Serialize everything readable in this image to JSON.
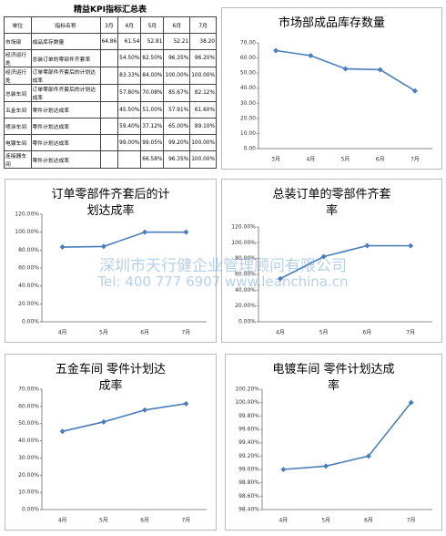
{
  "table": {
    "title": "精益KPI指标汇总表",
    "header": [
      "单位",
      "指标名称",
      "3月",
      "4月",
      "5月",
      "6月",
      "7月"
    ],
    "rows": [
      [
        "市场部",
        "成品库存数量",
        "64.86",
        "61.54",
        "52.81",
        "52.21",
        "38.20"
      ],
      [
        "经济运行处",
        "总装订单的零部件齐套率",
        null,
        "54.50%",
        "82.50%",
        "96.35%",
        "96.20%"
      ],
      [
        "经济运行处",
        "订单零部件齐套后的计划达成率",
        null,
        "83.33%",
        "84.00%",
        "100.00%",
        "100.00%"
      ],
      [
        "总装车间",
        "订单零部件齐套后的计划达成率",
        null,
        "57.80%",
        "70.08%",
        "85.67%",
        "82.12%"
      ],
      [
        "五金车间",
        "零件计划达成率",
        null,
        "45.50%",
        "51.00%",
        "57.91%",
        "61.60%"
      ],
      [
        "喷涂车间",
        "零件计划达成率",
        null,
        "59.40%",
        "37.12%",
        "65.00%",
        "89.10%"
      ],
      [
        "电镀车间",
        "零件计划达成率",
        null,
        "99.00%",
        "99.05%",
        "99.20%",
        "100.00%"
      ],
      [
        "连接器车间",
        "零件计划达成率",
        null,
        null,
        "66.58%",
        "96.35%",
        "100.00%"
      ]
    ]
  },
  "watermark": [
    "深圳市天行健企业管理顾问有限公司",
    "Tel: 400 777 6907 www.leanchina.cn"
  ],
  "chart_data": [
    {
      "type": "line",
      "title": "市场部成品库存数量",
      "color": "#4a7ebb",
      "categories": [
        "3月",
        "4月",
        "5月",
        "6月",
        "7月"
      ],
      "values": [
        64.86,
        61.54,
        52.81,
        52.21,
        38.2
      ],
      "ylim": [
        0,
        70
      ],
      "yticks": [
        {
          "value": 0,
          "label": "0.00"
        },
        {
          "value": 10,
          "label": "10.00"
        },
        {
          "value": 20,
          "label": "20.00"
        },
        {
          "value": 30,
          "label": "30.00"
        },
        {
          "value": 40,
          "label": "40.00"
        },
        {
          "value": 50,
          "label": "50.00"
        },
        {
          "value": 60,
          "label": "60.00"
        },
        {
          "value": 70,
          "label": "70.00"
        }
      ],
      "grid": false
    },
    {
      "type": "line",
      "title": "订单零部件齐套后的计划达成率",
      "color": "#4a7ebb",
      "categories": [
        "4月",
        "5月",
        "6月",
        "7月"
      ],
      "values": [
        83.33,
        84,
        100,
        100
      ],
      "ylim": [
        0,
        120
      ],
      "yticks": [
        {
          "value": 0,
          "label": "0.00%"
        },
        {
          "value": 20,
          "label": "20.00%"
        },
        {
          "value": 40,
          "label": "40.00%"
        },
        {
          "value": 60,
          "label": "60.00%"
        },
        {
          "value": 80,
          "label": "80.00%"
        },
        {
          "value": 100,
          "label": "100.00%"
        },
        {
          "value": 120,
          "label": "120.00%"
        }
      ],
      "grid": false
    },
    {
      "type": "line",
      "title": "总装订单的零部件齐套率",
      "color": "#4a7ebb",
      "categories": [
        "4月",
        "5月",
        "6月",
        "7月"
      ],
      "values": [
        54.5,
        82.5,
        96.35,
        96.2
      ],
      "ylim": [
        0,
        120
      ],
      "yticks": [
        {
          "value": 0,
          "label": "0.00%"
        },
        {
          "value": 20,
          "label": "20.00%"
        },
        {
          "value": 40,
          "label": "40.00%"
        },
        {
          "value": 60,
          "label": "60.00%"
        },
        {
          "value": 80,
          "label": "80.00%"
        },
        {
          "value": 100,
          "label": "100.00%"
        },
        {
          "value": 120,
          "label": "120.00%"
        }
      ],
      "grid": false
    },
    {
      "type": "line",
      "title": "五金车间 零件计划达成率",
      "color": "#4a7ebb",
      "categories": [
        "4月",
        "5月",
        "6月",
        "7月"
      ],
      "values": [
        45.5,
        51,
        57.91,
        61.6
      ],
      "ylim": [
        0,
        70
      ],
      "yticks": [
        {
          "value": 0,
          "label": "0.00%"
        },
        {
          "value": 10,
          "label": "10.00%"
        },
        {
          "value": 20,
          "label": "20.00%"
        },
        {
          "value": 30,
          "label": "30.00%"
        },
        {
          "value": 40,
          "label": "40.00%"
        },
        {
          "value": 50,
          "label": "50.00%"
        },
        {
          "value": 60,
          "label": "60.00%"
        },
        {
          "value": 70,
          "label": "70.00%"
        }
      ],
      "grid": false
    },
    {
      "type": "line",
      "title": "电镀车间 零件计划达成率",
      "color": "#4a7ebb",
      "categories": [
        "4月",
        "5月",
        "6月",
        "7月"
      ],
      "values": [
        99,
        99.05,
        99.2,
        100
      ],
      "ylim": [
        98.4,
        100.2
      ],
      "yticks": [
        {
          "value": 98.4,
          "label": "98.40%"
        },
        {
          "value": 98.6,
          "label": "98.60%"
        },
        {
          "value": 98.8,
          "label": "98.80%"
        },
        {
          "value": 99,
          "label": "99.00%"
        },
        {
          "value": 99.2,
          "label": "99.20%"
        },
        {
          "value": 99.4,
          "label": "99.40%"
        },
        {
          "value": 99.6,
          "label": "99.60%"
        },
        {
          "value": 99.8,
          "label": "99.80%"
        },
        {
          "value": 100,
          "label": "100.00%"
        },
        {
          "value": 100.2,
          "label": "100.20%"
        }
      ],
      "grid": false
    }
  ]
}
